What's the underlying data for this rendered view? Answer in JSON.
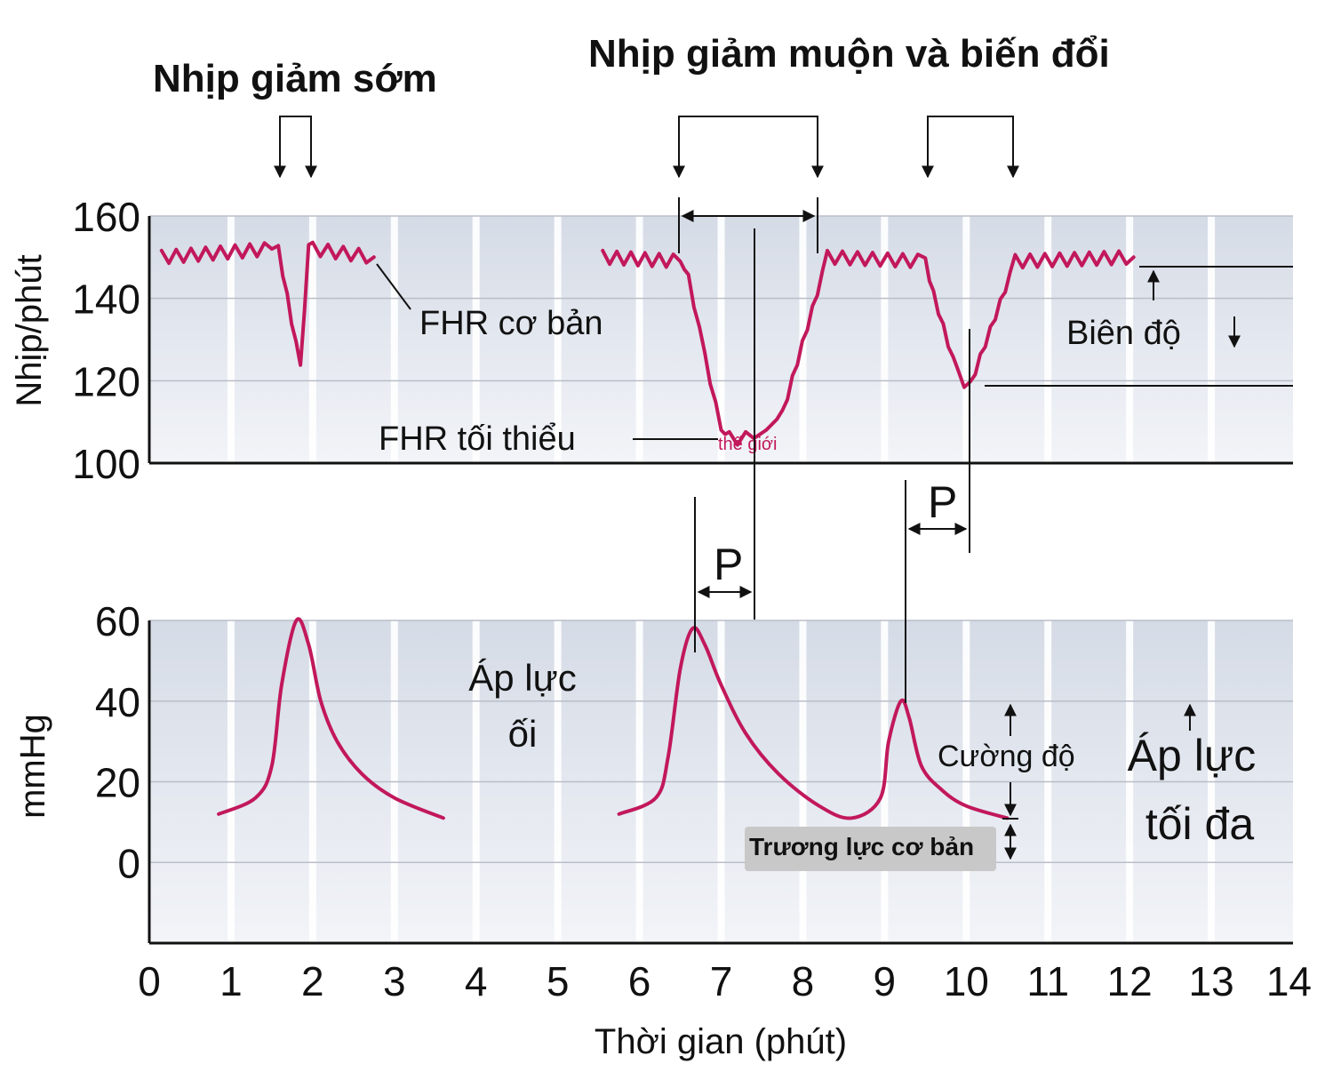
{
  "chart_data": [
    {
      "type": "line",
      "title": "",
      "ylabel": "Nhịp/phút",
      "xlabel": "",
      "ylim": [
        100,
        160
      ],
      "xlim": [
        0,
        14
      ],
      "yticks": [
        "100",
        "120",
        "140",
        "160"
      ],
      "grid": true,
      "series": [
        {
          "name": "",
          "segment": "early",
          "x": [
            0.15,
            1.5,
            1.58,
            1.85,
            1.95,
            2.0,
            2.75
          ],
          "y": [
            150,
            152,
            152,
            123,
            153,
            152,
            150
          ]
        },
        {
          "name": "",
          "segment": "late",
          "x": [
            5.55,
            6.5,
            6.6,
            6.8,
            7.0,
            7.1,
            7.4,
            7.55,
            7.75,
            8.3,
            9.5,
            9.6,
            9.9,
            10.05,
            10.6,
            12.05
          ],
          "y": [
            150,
            149,
            145,
            126,
            108,
            106,
            106,
            108,
            112,
            150,
            149,
            141,
            121,
            119,
            149,
            150
          ]
        }
      ]
    },
    {
      "type": "line",
      "title": "",
      "ylabel": "mmHg",
      "xlabel": "Thời gian (phút)",
      "ylim": [
        -20,
        60
      ],
      "xlim": [
        0,
        14
      ],
      "yticks": [
        "0",
        "20",
        "40",
        "60"
      ],
      "xticks": [
        "0",
        "1",
        "2",
        "3",
        "4",
        "5",
        "6",
        "7",
        "8",
        "9",
        "10",
        "11",
        "12",
        "13",
        "14"
      ],
      "grid": true,
      "series": [
        {
          "name": "",
          "segment": "contraction-1",
          "x": [
            0.85,
            1.3,
            1.5,
            1.62,
            1.8,
            1.95,
            2.1,
            2.3,
            2.6,
            3.0,
            3.6
          ],
          "y": [
            12,
            16,
            24,
            44,
            60,
            54,
            40,
            30,
            22,
            16,
            11
          ]
        },
        {
          "name": "",
          "segment": "contraction-2",
          "x": [
            5.75,
            6.2,
            6.35,
            6.5,
            6.65,
            6.8,
            7.0,
            7.3,
            7.7,
            8.2,
            8.6,
            8.95,
            9.05,
            9.2,
            9.3,
            9.45,
            9.7,
            10.0,
            10.5
          ],
          "y": [
            12,
            16,
            26,
            48,
            58,
            54,
            44,
            32,
            22,
            14,
            11,
            16,
            30,
            40,
            36,
            24,
            18,
            14,
            11
          ]
        }
      ]
    }
  ],
  "headings": {
    "early": "Nhịp giảm sớm",
    "late": "Nhịp giảm muộn và biến đổi"
  },
  "annotations": {
    "fhr_baseline": "FHR cơ bản",
    "fhr_min": "FHR tối thiểu",
    "fhr_min_small": "thế giới",
    "amplitude": "Biên độ",
    "lag_p1": "P",
    "lag_p2": "P",
    "amniotic_pressure_line1": "Áp lực",
    "amniotic_pressure_line2": "ối",
    "intensity": "Cường độ",
    "max_pressure_line1": "Áp lực",
    "max_pressure_line2": "tối đa",
    "basal_tone": "Trương lực cơ bản"
  },
  "colors": {
    "trace": "#c2185b",
    "panel_top": "#d5dbe6",
    "panel_bottom": "#f1f3f7",
    "gridline": "#b9bec8",
    "tone_box": "#c8c8c8"
  }
}
